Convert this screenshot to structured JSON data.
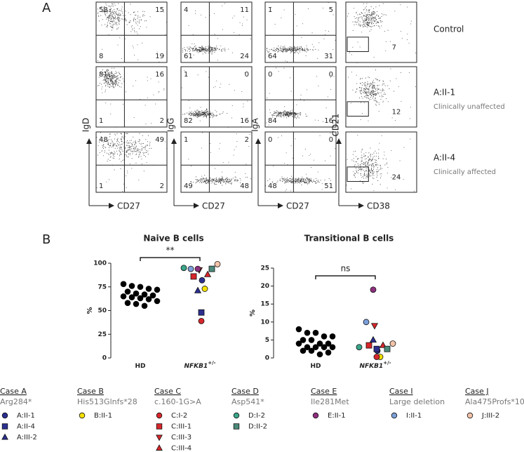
{
  "panel_a": {
    "letter": "A",
    "columns": [
      {
        "ylabel": "IgD",
        "xlabel": "CD27"
      },
      {
        "ylabel": "IgG",
        "xlabel": "CD27"
      },
      {
        "ylabel": "IgA",
        "xlabel": "CD27"
      },
      {
        "ylabel": "CD21",
        "xlabel": "CD38"
      }
    ],
    "rows": [
      {
        "label": "Control",
        "plots": [
          [
            58,
            15,
            8,
            19
          ],
          [
            4,
            11,
            61,
            24
          ],
          [
            1,
            5,
            64,
            31
          ],
          [
            7
          ]
        ]
      },
      {
        "label": "A:II-1",
        "sublabel": "Clinically unaffected",
        "plots": [
          [
            81,
            16,
            1,
            2
          ],
          [
            1,
            0,
            82,
            16
          ],
          [
            0,
            0,
            84,
            16
          ],
          [
            12
          ]
        ]
      },
      {
        "label": "A:II-4",
        "sublabel": "Clinically affected",
        "plots": [
          [
            48,
            49,
            1,
            2
          ],
          [
            1,
            2,
            49,
            48
          ],
          [
            0,
            0,
            48,
            51
          ],
          [
            24
          ]
        ]
      }
    ]
  },
  "panel_b": {
    "letter": "B"
  },
  "chart_data": [
    {
      "type": "strip",
      "title": "Naive B cells",
      "ylabel": "%",
      "categories": [
        "HD",
        "NFKB1"
      ],
      "superscripts": [
        null,
        "+/-"
      ],
      "ylim": [
        0,
        100
      ],
      "yticks": [
        0,
        25,
        50,
        75,
        100
      ],
      "annotation": "**",
      "hd_color": "#000000",
      "hd_values": [
        78,
        76,
        75,
        73,
        72,
        70,
        68,
        67,
        66,
        65,
        64,
        63,
        62,
        60,
        58,
        57,
        55
      ],
      "patient_values": [
        82,
        48,
        71,
        73,
        39,
        86,
        93,
        88,
        95,
        94,
        94,
        94,
        99
      ]
    },
    {
      "type": "strip",
      "title": "Transitional B cells",
      "ylabel": "%",
      "categories": [
        "HD",
        "NFKB1"
      ],
      "superscripts": [
        null,
        "+/-"
      ],
      "ylim": [
        0,
        25
      ],
      "yticks": [
        0,
        5,
        10,
        15,
        20,
        25
      ],
      "annotation": "ns",
      "hd_color": "#000000",
      "hd_values": [
        8,
        7,
        7,
        6,
        6,
        5,
        5,
        4,
        4,
        4,
        3,
        3,
        3,
        3,
        2,
        2,
        1,
        1.5
      ],
      "patient_values": [
        2,
        2.5,
        5,
        0.3,
        0.3,
        3.5,
        9,
        3.5,
        3,
        2.5,
        19,
        10,
        4
      ]
    }
  ],
  "legend": {
    "cases": [
      {
        "title": "Case A",
        "subtitle": "Arg284*",
        "entries": [
          {
            "label": "A:II-1",
            "color": "#2b2f8f",
            "marker": "circle"
          },
          {
            "label": "A:II-4",
            "color": "#2b2f8f",
            "marker": "square"
          },
          {
            "label": "A:III-2",
            "color": "#2b2f8f",
            "marker": "triangle-up"
          }
        ]
      },
      {
        "title": "Case B",
        "subtitle": "His513Glnfs*28",
        "entries": [
          {
            "label": "B:II-1",
            "color": "#f5e100",
            "marker": "circle"
          }
        ]
      },
      {
        "title": "Case C",
        "subtitle": "c.160-1G>A",
        "entries": [
          {
            "label": "C:I-2",
            "color": "#d7262b",
            "marker": "circle"
          },
          {
            "label": "C:III-1",
            "color": "#d7262b",
            "marker": "square"
          },
          {
            "label": "C:III-3",
            "color": "#d7262b",
            "marker": "triangle-down"
          },
          {
            "label": "C:III-4",
            "color": "#d7262b",
            "marker": "triangle-up"
          }
        ]
      },
      {
        "title": "Case D",
        "subtitle": "Asp541*",
        "entries": [
          {
            "label": "D:I-2",
            "color": "#3aa68a",
            "marker": "circle"
          },
          {
            "label": "D:II-2",
            "color": "#4b8a7a",
            "marker": "square"
          }
        ]
      },
      {
        "title": "Case E",
        "subtitle": "Ile281Met",
        "entries": [
          {
            "label": "E:II-1",
            "color": "#8e2f7e",
            "marker": "circle"
          }
        ]
      },
      {
        "title": "Case I",
        "subtitle": "Large deletion",
        "entries": [
          {
            "label": "I:II-1",
            "color": "#7c9fd8",
            "marker": "circle"
          }
        ]
      },
      {
        "title": "Case J",
        "subtitle": "Ala475Profs*10",
        "entries": [
          {
            "label": "J:III-2",
            "color": "#f3c3a8",
            "marker": "circle"
          }
        ]
      }
    ]
  }
}
